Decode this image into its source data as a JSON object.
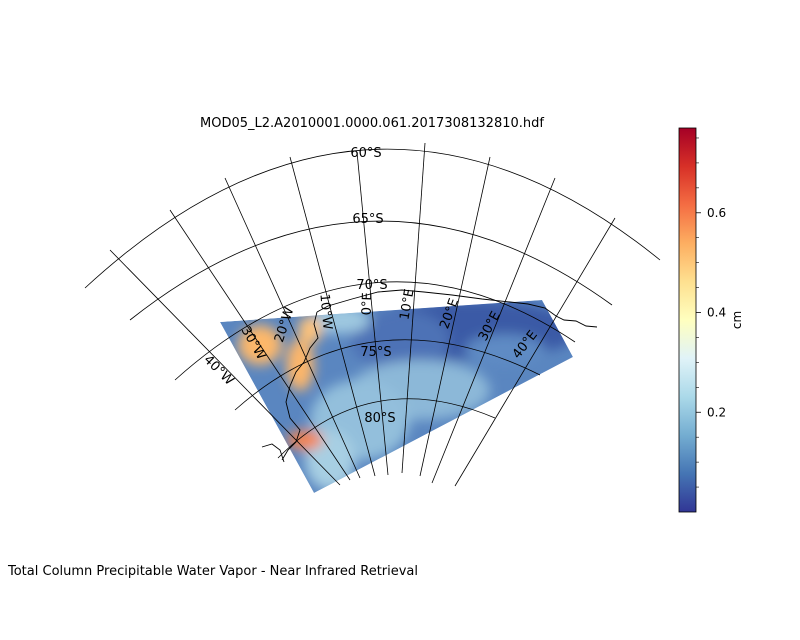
{
  "figure": {
    "title": "MOD05_L2.A2010001.0000.061.2017308132810.hdf",
    "caption": "Total Column Precipitable Water Vapor - Near Infrared Retrieval"
  },
  "map": {
    "projection": "south-polar-stereographic",
    "lat_labels": [
      "60°S",
      "65°S",
      "70°S",
      "75°S",
      "80°S"
    ],
    "lon_labels": [
      "40°W",
      "30°W",
      "20°W",
      "10°W",
      "0°E",
      "10°E",
      "20°E",
      "30°E",
      "40°E"
    ]
  },
  "colorbar": {
    "label": "cm",
    "ticks": [
      "0.2",
      "0.4",
      "0.6"
    ],
    "tick_values": [
      0.2,
      0.4,
      0.6
    ],
    "vmin": 0.0,
    "vmax": 0.77,
    "colormap": "RdYlBu_r",
    "colors": [
      "#313695",
      "#4575b4",
      "#74add1",
      "#abd9e9",
      "#e0f3f8",
      "#ffffbf",
      "#fee090",
      "#fdae61",
      "#f46d43",
      "#d73027",
      "#a50026"
    ]
  }
}
